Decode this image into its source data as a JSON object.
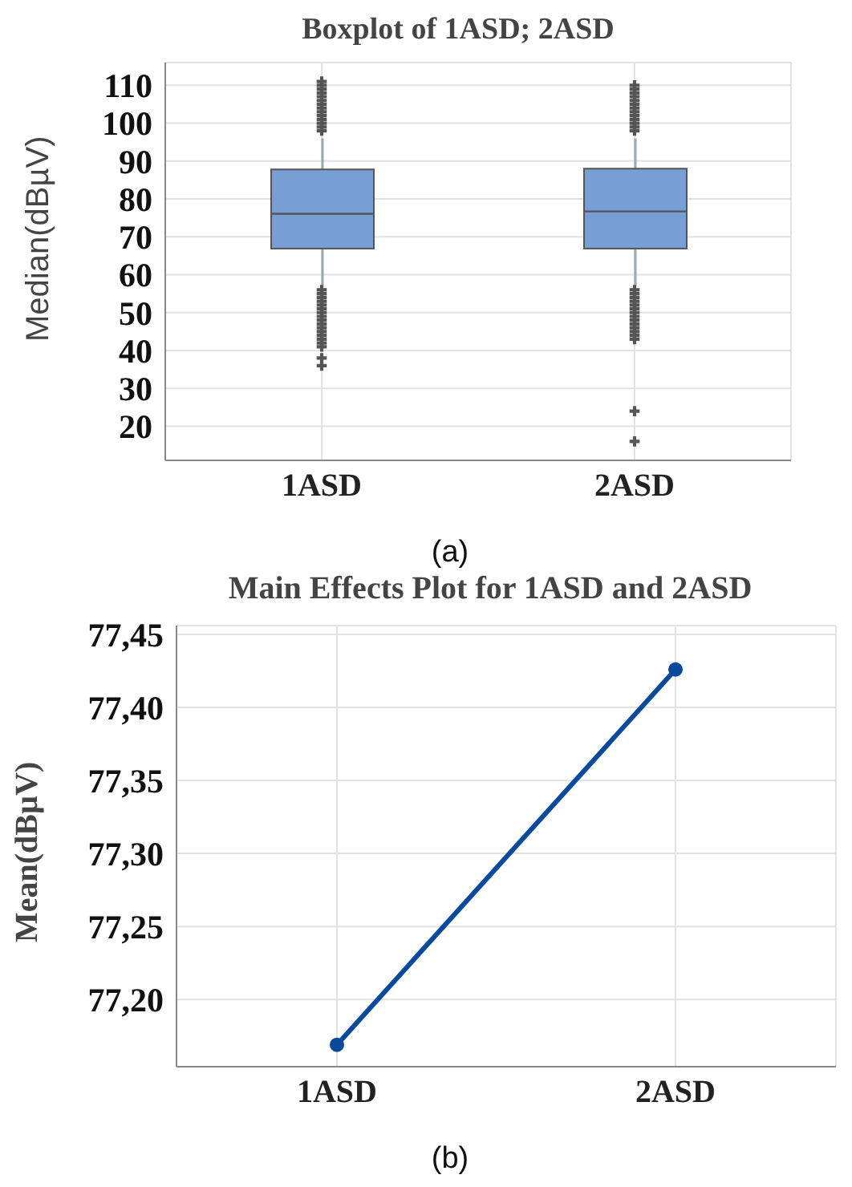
{
  "chart_data": [
    {
      "type": "box",
      "title": "Boxplot of 1ASD; 2ASD",
      "ylabel": "Median(dBµV)",
      "categories": [
        "1ASD",
        "2ASD"
      ],
      "color": "#779fd6",
      "boxes": [
        {
          "low": 57,
          "q1": 66.9,
          "median": 76.1,
          "q3": 87.8,
          "high": 96,
          "outliers": [
            98,
            99,
            100,
            101,
            102,
            103,
            104,
            105,
            106,
            107,
            108,
            109,
            110,
            111,
            56,
            55,
            54,
            53,
            52,
            51,
            50,
            49,
            48,
            47,
            46,
            45,
            44,
            43,
            42,
            41,
            38,
            36
          ]
        },
        {
          "low": 57,
          "q1": 66.9,
          "median": 76.7,
          "q3": 88,
          "high": 96,
          "outliers": [
            98,
            99,
            100,
            101,
            102,
            103,
            104,
            105,
            106,
            107,
            108,
            109,
            110,
            56,
            55,
            54,
            53,
            52,
            51,
            50,
            49,
            48,
            47,
            46,
            45,
            44,
            43,
            24,
            16
          ]
        }
      ],
      "ylim": [
        11,
        116
      ],
      "yticks": [
        20,
        30,
        40,
        50,
        60,
        70,
        80,
        90,
        100,
        110
      ],
      "grid": true,
      "annotations": [
        "(a)"
      ]
    },
    {
      "type": "line",
      "title": "Main Effects Plot for 1ASD and 2ASD",
      "ylabel": "Mean(dBµV)",
      "categories": [
        "1ASD",
        "2ASD"
      ],
      "values": [
        77.169,
        77.426
      ],
      "color": "#0a4a9e",
      "marker": "circle",
      "ylim": [
        77.154,
        77.456
      ],
      "yticks": [
        {
          "value": 77.2,
          "label": "77,20"
        },
        {
          "value": 77.25,
          "label": "77,25"
        },
        {
          "value": 77.3,
          "label": "77,30"
        },
        {
          "value": 77.35,
          "label": "77,35"
        },
        {
          "value": 77.4,
          "label": "77,40"
        },
        {
          "value": 77.45,
          "label": "77,45"
        }
      ],
      "grid": true,
      "annotations": [
        "(b)"
      ]
    }
  ]
}
